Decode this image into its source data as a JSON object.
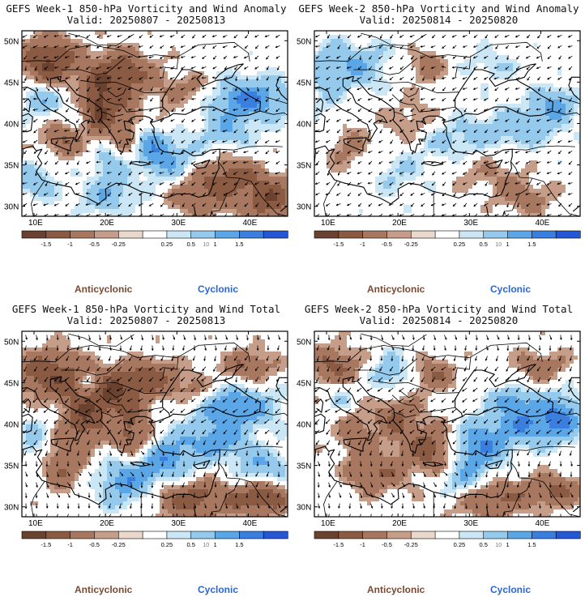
{
  "panels": [
    {
      "title": "GEFS Week-1 850-hPa Vorticity and Wind Anomaly",
      "valid": "Valid: 20250807 - 20250813",
      "pattern": 0
    },
    {
      "title": "GEFS Week-2 850-hPa Vorticity and Wind Anomaly",
      "valid": "Valid: 20250814 - 20250820",
      "pattern": 1
    },
    {
      "title": "GEFS Week-1 850-hPa Vorticity and Wind Total",
      "valid": "Valid: 20250807 - 20250813",
      "pattern": 2
    },
    {
      "title": "GEFS Week-2 850-hPa Vorticity and Wind Total",
      "valid": "Valid: 20250814 - 20250820",
      "pattern": 3
    }
  ],
  "lat_labels": [
    "50N",
    "45N",
    "40N",
    "35N",
    "30N"
  ],
  "lon_labels": [
    "10E",
    "20E",
    "30E",
    "40E"
  ],
  "colorbar": {
    "labels": [
      "-1.5",
      "-1",
      "-0.5",
      "-0.25",
      "0.25",
      "0.5",
      "1",
      "1.5"
    ],
    "colors": [
      "#6b4230",
      "#8a5a43",
      "#a7775f",
      "#c59d88",
      "#ead8cd",
      "#ffffff",
      "#cbe7f5",
      "#95caec",
      "#5aa6e6",
      "#3a7ee0",
      "#2457d6"
    ],
    "unit_marker": "10"
  },
  "legend": {
    "anticyclonic": "Anticyclonic",
    "cyclonic": "Cyclonic"
  },
  "colors": {
    "anticyclonic_text": "#7a4a33",
    "cyclonic_text": "#2a67d6",
    "land_line": "#000000"
  }
}
